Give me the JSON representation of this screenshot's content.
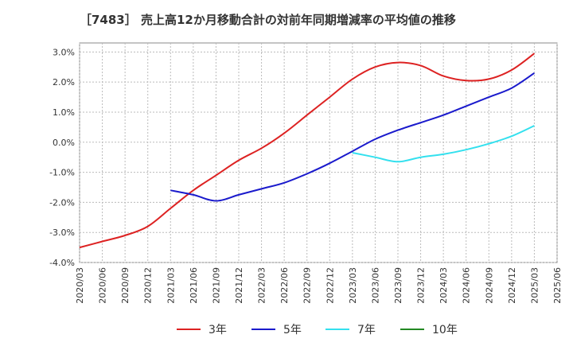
{
  "chart_data": {
    "type": "line",
    "title": "［7483］ 売上高12か月移動合計の対前年同期増減率の平均値の推移",
    "xlabel": "",
    "ylabel": "",
    "ylim": [
      -4.0,
      3.3
    ],
    "yticks": [
      "3.0%",
      "2.0%",
      "1.0%",
      "0.0%",
      "-1.0%",
      "-2.0%",
      "-3.0%",
      "-4.0%"
    ],
    "ytick_values": [
      3,
      2,
      1,
      0,
      -1,
      -2,
      -3,
      -4
    ],
    "x_ticks": [
      "2020/03",
      "2020/06",
      "2020/09",
      "2020/12",
      "2021/03",
      "2021/06",
      "2021/09",
      "2021/12",
      "2022/03",
      "2022/06",
      "2022/09",
      "2022/12",
      "2023/03",
      "2023/06",
      "2023/09",
      "2023/12",
      "2024/03",
      "2024/06",
      "2024/09",
      "2024/12",
      "2025/03",
      "2025/06"
    ],
    "grid": true,
    "legend_position": "bottom",
    "series": [
      {
        "name": "3年",
        "color": "#dd2222",
        "points": [
          [
            "2020/03",
            -3.5
          ],
          [
            "2020/06",
            -3.3
          ],
          [
            "2020/09",
            -3.1
          ],
          [
            "2020/12",
            -2.8
          ],
          [
            "2021/03",
            -2.2
          ],
          [
            "2021/06",
            -1.6
          ],
          [
            "2021/09",
            -1.1
          ],
          [
            "2021/12",
            -0.6
          ],
          [
            "2022/03",
            -0.2
          ],
          [
            "2022/06",
            0.3
          ],
          [
            "2022/09",
            0.9
          ],
          [
            "2022/12",
            1.5
          ],
          [
            "2023/03",
            2.1
          ],
          [
            "2023/06",
            2.5
          ],
          [
            "2023/09",
            2.65
          ],
          [
            "2023/12",
            2.55
          ],
          [
            "2024/03",
            2.2
          ],
          [
            "2024/06",
            2.05
          ],
          [
            "2024/09",
            2.1
          ],
          [
            "2024/12",
            2.4
          ],
          [
            "2025/03",
            2.95
          ]
        ]
      },
      {
        "name": "5年",
        "color": "#1a1acc",
        "points": [
          [
            "2021/03",
            -1.6
          ],
          [
            "2021/06",
            -1.75
          ],
          [
            "2021/09",
            -1.95
          ],
          [
            "2021/12",
            -1.75
          ],
          [
            "2022/03",
            -1.55
          ],
          [
            "2022/06",
            -1.35
          ],
          [
            "2022/09",
            -1.05
          ],
          [
            "2022/12",
            -0.7
          ],
          [
            "2023/03",
            -0.3
          ],
          [
            "2023/06",
            0.1
          ],
          [
            "2023/09",
            0.4
          ],
          [
            "2023/12",
            0.65
          ],
          [
            "2024/03",
            0.9
          ],
          [
            "2024/06",
            1.2
          ],
          [
            "2024/09",
            1.5
          ],
          [
            "2024/12",
            1.8
          ],
          [
            "2025/03",
            2.3
          ]
        ]
      },
      {
        "name": "7年",
        "color": "#33e0ee",
        "points": [
          [
            "2023/03",
            -0.35
          ],
          [
            "2023/06",
            -0.5
          ],
          [
            "2023/09",
            -0.65
          ],
          [
            "2023/12",
            -0.5
          ],
          [
            "2024/03",
            -0.4
          ],
          [
            "2024/06",
            -0.25
          ],
          [
            "2024/09",
            -0.05
          ],
          [
            "2024/12",
            0.2
          ],
          [
            "2025/03",
            0.55
          ]
        ]
      },
      {
        "name": "10年",
        "color": "#228822",
        "points": []
      }
    ]
  }
}
